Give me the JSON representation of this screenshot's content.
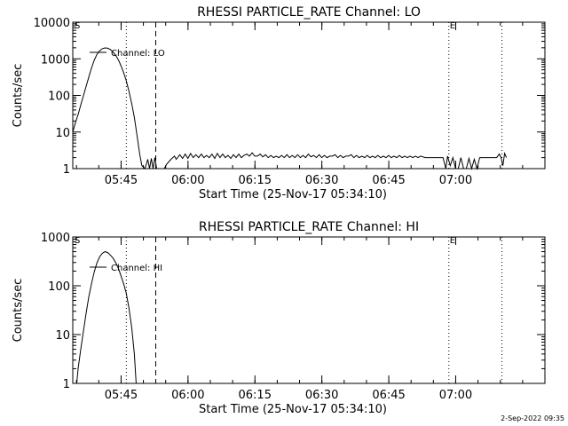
{
  "footer": {
    "timestamp": "2-Sep-2022 09:35"
  },
  "chart_data": [
    {
      "type": "line",
      "title": "RHESSI PARTICLE_RATE Channel: LO",
      "xlabel": "Start Time (25-Nov-17 05:34:10)",
      "ylabel": "Counts/sec",
      "yscale": "log",
      "ylim": [
        1,
        10000
      ],
      "xlim_minutes": [
        0,
        105.83
      ],
      "yticks": [
        {
          "v": 1,
          "label": "1"
        },
        {
          "v": 10,
          "label": "10"
        },
        {
          "v": 100,
          "label": "100"
        },
        {
          "v": 1000,
          "label": "1000"
        },
        {
          "v": 10000,
          "label": "10000"
        }
      ],
      "xticks": [
        {
          "t": 10.83,
          "label": "05:45"
        },
        {
          "t": 25.83,
          "label": "06:00"
        },
        {
          "t": 40.83,
          "label": "06:15"
        },
        {
          "t": 55.83,
          "label": "06:30"
        },
        {
          "t": 70.83,
          "label": "06:45"
        },
        {
          "t": 85.83,
          "label": "07:00"
        }
      ],
      "legend": {
        "label": "Channel: LO",
        "position": "top-left"
      },
      "markers": [
        {
          "t": 0.2,
          "label": "S"
        },
        {
          "t": 84.3,
          "label": "E"
        }
      ],
      "vlines": [
        {
          "t": 12.0,
          "style": "dotted"
        },
        {
          "t": 18.6,
          "style": "dashed"
        },
        {
          "t": 84.3,
          "style": "dotted"
        },
        {
          "t": 96.2,
          "style": "dotted"
        }
      ],
      "series": [
        {
          "name": "Channel: LO",
          "points": [
            [
              0,
              10
            ],
            [
              0.6,
              18
            ],
            [
              1.2,
              30
            ],
            [
              1.8,
              55
            ],
            [
              2.4,
              100
            ],
            [
              3.0,
              180
            ],
            [
              3.6,
              320
            ],
            [
              4.2,
              560
            ],
            [
              4.8,
              900
            ],
            [
              5.4,
              1300
            ],
            [
              6.0,
              1650
            ],
            [
              6.6,
              1880
            ],
            [
              7.2,
              1980
            ],
            [
              7.8,
              1950
            ],
            [
              8.4,
              1800
            ],
            [
              9.0,
              1550
            ],
            [
              9.6,
              1250
            ],
            [
              10.2,
              950
            ],
            [
              10.8,
              650
            ],
            [
              11.4,
              420
            ],
            [
              12.0,
              250
            ],
            [
              12.6,
              130
            ],
            [
              13.2,
              60
            ],
            [
              13.8,
              25
            ],
            [
              14.4,
              8
            ],
            [
              15.0,
              2.5
            ],
            [
              15.5,
              1.2
            ],
            [
              16.2,
              1
            ],
            [
              16.8,
              1.8
            ],
            [
              17.2,
              1
            ],
            [
              17.6,
              1.9
            ],
            [
              18.0,
              1
            ],
            [
              18.4,
              2
            ],
            [
              18.8,
              1
            ],
            [
              19.5,
              1
            ],
            [
              20.5,
              1
            ],
            [
              21.0,
              1.3
            ],
            [
              22.0,
              1.8
            ],
            [
              22.8,
              2.2
            ],
            [
              23.2,
              1.8
            ],
            [
              24.0,
              2.4
            ],
            [
              24.6,
              1.9
            ],
            [
              25.2,
              2.5
            ],
            [
              25.8,
              1.9
            ],
            [
              26.4,
              2.6
            ],
            [
              27.0,
              2.0
            ],
            [
              27.6,
              2.4
            ],
            [
              28.2,
              2.0
            ],
            [
              28.8,
              2.5
            ],
            [
              29.4,
              2.0
            ],
            [
              30.0,
              2.3
            ],
            [
              30.6,
              2.0
            ],
            [
              31.2,
              2.5
            ],
            [
              31.8,
              1.9
            ],
            [
              32.4,
              2.6
            ],
            [
              33.0,
              2.0
            ],
            [
              33.6,
              2.5
            ],
            [
              34.2,
              2.0
            ],
            [
              34.8,
              2.3
            ],
            [
              35.4,
              1.9
            ],
            [
              36.0,
              2.4
            ],
            [
              36.6,
              2.0
            ],
            [
              37.2,
              2.5
            ],
            [
              37.8,
              2.0
            ],
            [
              38.4,
              2.3
            ],
            [
              39.0,
              2.5
            ],
            [
              39.6,
              2.2
            ],
            [
              40.2,
              2.7
            ],
            [
              40.8,
              2.2
            ],
            [
              41.4,
              2.2
            ],
            [
              42.0,
              2.5
            ],
            [
              42.6,
              2.1
            ],
            [
              43.2,
              2.4
            ],
            [
              43.8,
              2.0
            ],
            [
              44.4,
              2.3
            ],
            [
              45.0,
              2.0
            ],
            [
              45.6,
              2.2
            ],
            [
              46.2,
              2.0
            ],
            [
              46.8,
              2.3
            ],
            [
              47.4,
              2.0
            ],
            [
              48.0,
              2.4
            ],
            [
              48.6,
              2.0
            ],
            [
              49.2,
              2.3
            ],
            [
              49.8,
              2.0
            ],
            [
              50.4,
              2.4
            ],
            [
              51.0,
              2.0
            ],
            [
              51.6,
              2.3
            ],
            [
              52.2,
              2.0
            ],
            [
              52.8,
              2.5
            ],
            [
              53.4,
              2.1
            ],
            [
              54.0,
              2.3
            ],
            [
              54.6,
              2.0
            ],
            [
              55.2,
              2.4
            ],
            [
              55.8,
              2.0
            ],
            [
              56.4,
              2.3
            ],
            [
              57.0,
              2.0
            ],
            [
              57.6,
              2.2
            ],
            [
              58.2,
              2.2
            ],
            [
              58.8,
              2.4
            ],
            [
              59.4,
              2.0
            ],
            [
              60.0,
              2.3
            ],
            [
              60.6,
              2.0
            ],
            [
              61.2,
              2.2
            ],
            [
              61.8,
              2.2
            ],
            [
              62.4,
              2.4
            ],
            [
              63.0,
              2.0
            ],
            [
              63.6,
              2.3
            ],
            [
              64.2,
              2.0
            ],
            [
              64.8,
              2.2
            ],
            [
              65.4,
              2.0
            ],
            [
              66.0,
              2.3
            ],
            [
              66.6,
              2.0
            ],
            [
              67.2,
              2.2
            ],
            [
              67.8,
              2.0
            ],
            [
              68.4,
              2.3
            ],
            [
              69.0,
              2.0
            ],
            [
              69.6,
              2.2
            ],
            [
              70.2,
              2.0
            ],
            [
              70.8,
              2.3
            ],
            [
              71.4,
              2.0
            ],
            [
              72.0,
              2.2
            ],
            [
              72.6,
              2.0
            ],
            [
              73.2,
              2.3
            ],
            [
              73.8,
              2.0
            ],
            [
              74.4,
              2.2
            ],
            [
              75.0,
              2.0
            ],
            [
              75.6,
              2.2
            ],
            [
              76.2,
              2.0
            ],
            [
              76.8,
              2.2
            ],
            [
              77.4,
              2.0
            ],
            [
              78.0,
              2.2
            ],
            [
              79.0,
              2.0
            ],
            [
              80.0,
              2.0
            ],
            [
              81.0,
              2.0
            ],
            [
              82.0,
              2.0
            ],
            [
              83.0,
              2.0
            ],
            [
              83.6,
              1
            ],
            [
              84.0,
              2.2
            ],
            [
              84.6,
              1.2
            ],
            [
              85.2,
              2
            ],
            [
              85.8,
              1
            ],
            [
              86.4,
              1
            ],
            [
              87.0,
              2.0
            ],
            [
              87.6,
              1
            ],
            [
              88.2,
              1
            ],
            [
              88.8,
              1.9
            ],
            [
              89.4,
              1
            ],
            [
              90.0,
              1.8
            ],
            [
              90.6,
              1
            ],
            [
              91.2,
              2.0
            ],
            [
              92.0,
              2.0
            ],
            [
              93.0,
              2.0
            ],
            [
              94.0,
              2.0
            ],
            [
              95.0,
              2.0
            ],
            [
              95.6,
              2.5
            ],
            [
              96.0,
              2.0
            ],
            [
              96.4,
              1.2
            ],
            [
              96.8,
              2.6
            ],
            [
              97.2,
              2.0
            ]
          ]
        }
      ]
    },
    {
      "type": "line",
      "title": "RHESSI PARTICLE_RATE Channel: HI",
      "xlabel": "Start Time (25-Nov-17 05:34:10)",
      "ylabel": "Counts/sec",
      "yscale": "log",
      "ylim": [
        1,
        1000
      ],
      "xlim_minutes": [
        0,
        105.83
      ],
      "yticks": [
        {
          "v": 1,
          "label": "1"
        },
        {
          "v": 10,
          "label": "10"
        },
        {
          "v": 100,
          "label": "100"
        },
        {
          "v": 1000,
          "label": "1000"
        }
      ],
      "xticks": [
        {
          "t": 10.83,
          "label": "05:45"
        },
        {
          "t": 25.83,
          "label": "06:00"
        },
        {
          "t": 40.83,
          "label": "06:15"
        },
        {
          "t": 55.83,
          "label": "06:30"
        },
        {
          "t": 70.83,
          "label": "06:45"
        },
        {
          "t": 85.83,
          "label": "07:00"
        }
      ],
      "legend": {
        "label": "Channel: HI",
        "position": "top-left"
      },
      "markers": [
        {
          "t": 0.2,
          "label": "S"
        },
        {
          "t": 84.3,
          "label": "E"
        }
      ],
      "vlines": [
        {
          "t": 12.0,
          "style": "dotted"
        },
        {
          "t": 18.6,
          "style": "dashed"
        },
        {
          "t": 84.3,
          "style": "dotted"
        },
        {
          "t": 96.2,
          "style": "dotted"
        }
      ],
      "series": [
        {
          "name": "Channel: HI",
          "points": [
            [
              0.9,
              1
            ],
            [
              1.2,
              2
            ],
            [
              1.8,
              5
            ],
            [
              2.4,
              12
            ],
            [
              3.0,
              28
            ],
            [
              3.6,
              60
            ],
            [
              4.2,
              110
            ],
            [
              4.8,
              190
            ],
            [
              5.4,
              290
            ],
            [
              6.0,
              390
            ],
            [
              6.6,
              460
            ],
            [
              7.2,
              500
            ],
            [
              7.8,
              480
            ],
            [
              8.4,
              430
            ],
            [
              9.0,
              370
            ],
            [
              9.6,
              300
            ],
            [
              10.2,
              230
            ],
            [
              10.8,
              160
            ],
            [
              11.4,
              110
            ],
            [
              12.0,
              70
            ],
            [
              12.6,
              35
            ],
            [
              13.2,
              14
            ],
            [
              13.8,
              4
            ],
            [
              14.2,
              1
            ]
          ]
        }
      ]
    }
  ]
}
